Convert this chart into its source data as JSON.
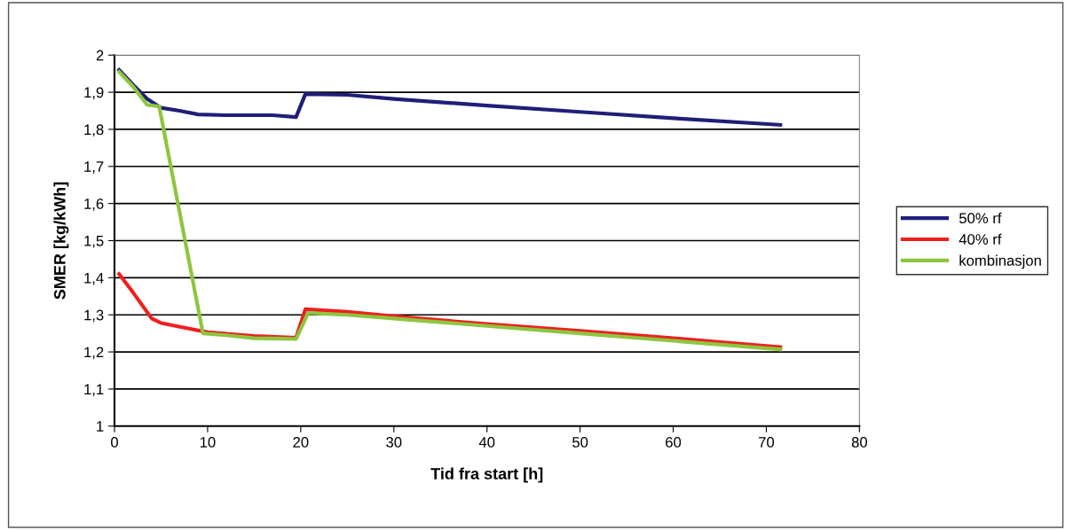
{
  "chart_data": {
    "type": "line",
    "xlabel": "Tid fra start [h]",
    "ylabel": "SMER [kg/kWh]",
    "xlim": [
      0,
      80
    ],
    "xticks": [
      0,
      10,
      20,
      30,
      40,
      50,
      60,
      70,
      80
    ],
    "ylim": [
      1,
      2
    ],
    "yticks": [
      1,
      {
        "value": 1.1,
        "label": "1,1"
      },
      {
        "value": 1.2,
        "label": "1,2"
      },
      {
        "value": 1.3,
        "label": "1,3"
      },
      {
        "value": 1.4,
        "label": "1,4"
      },
      {
        "value": 1.5,
        "label": "1,5"
      },
      {
        "value": 1.6,
        "label": "1,6"
      },
      {
        "value": 1.7,
        "label": "1,7"
      },
      {
        "value": 1.8,
        "label": "1,8"
      },
      {
        "value": 1.9,
        "label": "1,9"
      },
      2
    ],
    "grid": "y",
    "legend": "right",
    "marker": "none",
    "line_style": "solid",
    "series": [
      {
        "name": "50% rf",
        "color": "#1f1f78",
        "x": [
          0.5,
          2,
          3.5,
          5,
          7,
          9,
          12,
          17,
          19.5,
          20.5,
          25,
          30,
          40,
          50,
          60,
          71.5
        ],
        "values": [
          1.96,
          1.92,
          1.882,
          1.858,
          1.85,
          1.84,
          1.838,
          1.838,
          1.833,
          1.895,
          1.893,
          1.882,
          1.864,
          1.847,
          1.83,
          1.812
        ]
      },
      {
        "name": "40% rf",
        "color": "#ee2020",
        "x": [
          0.5,
          2,
          4,
          5,
          8,
          10,
          15,
          19.5,
          20.5,
          25,
          30,
          40,
          50,
          60,
          71.5
        ],
        "values": [
          1.41,
          1.36,
          1.29,
          1.278,
          1.263,
          1.253,
          1.243,
          1.238,
          1.315,
          1.308,
          1.296,
          1.275,
          1.257,
          1.237,
          1.213
        ]
      },
      {
        "name": "kombinasjon",
        "color": "#8cc63f",
        "x": [
          0.5,
          2,
          3.5,
          4.8,
          9.5,
          12,
          15,
          19.5,
          20.8,
          25,
          30,
          40,
          50,
          60,
          71.5
        ],
        "values": [
          1.955,
          1.915,
          1.866,
          1.862,
          1.25,
          1.245,
          1.237,
          1.235,
          1.305,
          1.3,
          1.29,
          1.27,
          1.25,
          1.23,
          1.207
        ]
      }
    ]
  }
}
